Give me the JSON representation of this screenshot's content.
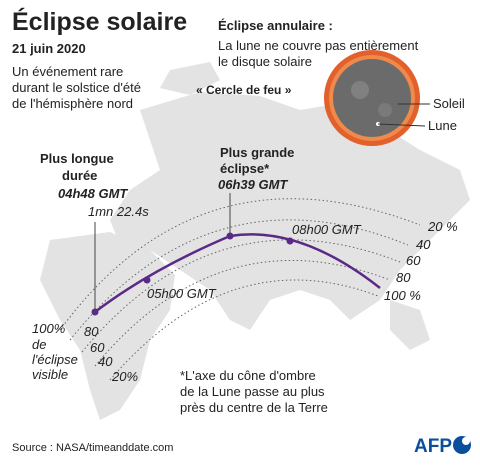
{
  "title": "Éclipse solaire",
  "date": "21 juin 2020",
  "subtitle": [
    "Un événement rare",
    "durant le solstice d'été",
    "de l'hémisphère nord"
  ],
  "inset": {
    "title": "Éclipse annulaire :",
    "text": [
      "La lune ne couvre pas entièrement",
      "le disque solaire"
    ],
    "ring": "« Cercle de feu »",
    "sun": "Soleil",
    "moon": "Lune"
  },
  "longest": {
    "label": [
      "Plus longue",
      "durée"
    ],
    "time": "04h48 GMT",
    "duration": "1mn 22.4s"
  },
  "greatest": {
    "label": [
      "Plus grande",
      "éclipse*"
    ],
    "time": "06h39 GMT"
  },
  "times": [
    "05h00 GMT",
    "08h00 GMT"
  ],
  "right_labels": [
    "20 %",
    "40",
    "60",
    "80",
    "100 %"
  ],
  "left_labels": {
    "full": [
      "100%",
      "de",
      "l'éclipse",
      "visible"
    ],
    "others": [
      "80",
      "60",
      "40",
      "20%"
    ]
  },
  "footnote": [
    "*L'axe du cône d'ombre",
    "de la Lune passe au plus",
    "près du centre de la Terre"
  ],
  "source": "Source : NASA/timeanddate.com",
  "logo": "AFP"
}
